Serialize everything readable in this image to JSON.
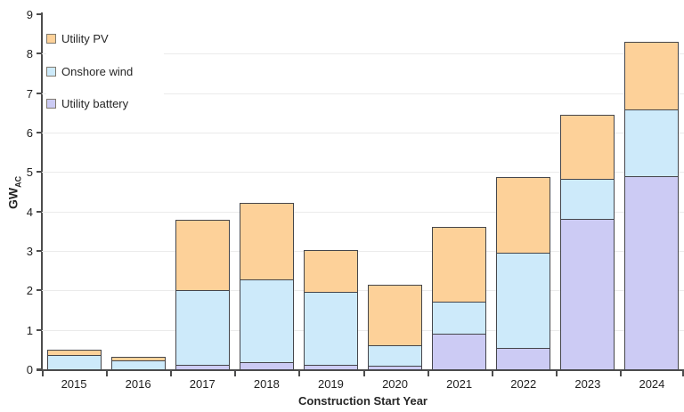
{
  "figure": {
    "background_color": "#ffffff",
    "axis_color": "#4d4d4d",
    "gridline_color": "#ebebeb",
    "text_color": "#262626",
    "bar_border_color": "#45464b"
  },
  "legend": {
    "items": [
      {
        "name": "utility-pv",
        "label": "Utility PV",
        "color": "#FDD199"
      },
      {
        "name": "onshore-wind",
        "label": "Onshore wind",
        "color": "#CDEAFA"
      },
      {
        "name": "utility-battery",
        "label": "Utility battery",
        "color": "#CCCBF4"
      }
    ]
  },
  "axes": {
    "y_title_main": "GW",
    "y_title_sub": "AC",
    "x_title": "Construction Start Year",
    "y_ticks": [
      "0",
      "1",
      "2",
      "3",
      "4",
      "5",
      "6",
      "7",
      "8",
      "9"
    ],
    "y_min": 0,
    "y_max": 9
  },
  "chart_data": {
    "type": "bar",
    "stacked": true,
    "title": "",
    "xlabel": "Construction Start Year",
    "ylabel": "GW_AC",
    "ylim": [
      0,
      9
    ],
    "grid": true,
    "legend_position": "upper-left-inside",
    "categories": [
      "2015",
      "2016",
      "2017",
      "2018",
      "2019",
      "2020",
      "2021",
      "2022",
      "2023",
      "2024"
    ],
    "series": [
      {
        "name": "Utility battery",
        "color": "#CCCBF4",
        "values": [
          0.0,
          0.0,
          0.11,
          0.17,
          0.12,
          0.09,
          0.9,
          0.55,
          3.81,
          4.89
        ]
      },
      {
        "name": "Onshore wind",
        "color": "#CDEAFA",
        "values": [
          0.36,
          0.23,
          1.89,
          2.11,
          1.85,
          0.52,
          0.82,
          2.4,
          1.01,
          1.69
        ]
      },
      {
        "name": "Utility PV",
        "color": "#FDD199",
        "values": [
          0.14,
          0.08,
          1.8,
          1.93,
          1.05,
          1.53,
          1.9,
          1.93,
          1.62,
          1.72
        ]
      }
    ],
    "stack_order_bottom_to_top": [
      "Utility battery",
      "Onshore wind",
      "Utility PV"
    ],
    "totals": [
      0.5,
      0.31,
      3.8,
      4.21,
      3.02,
      2.14,
      3.62,
      4.88,
      6.44,
      8.3
    ]
  }
}
